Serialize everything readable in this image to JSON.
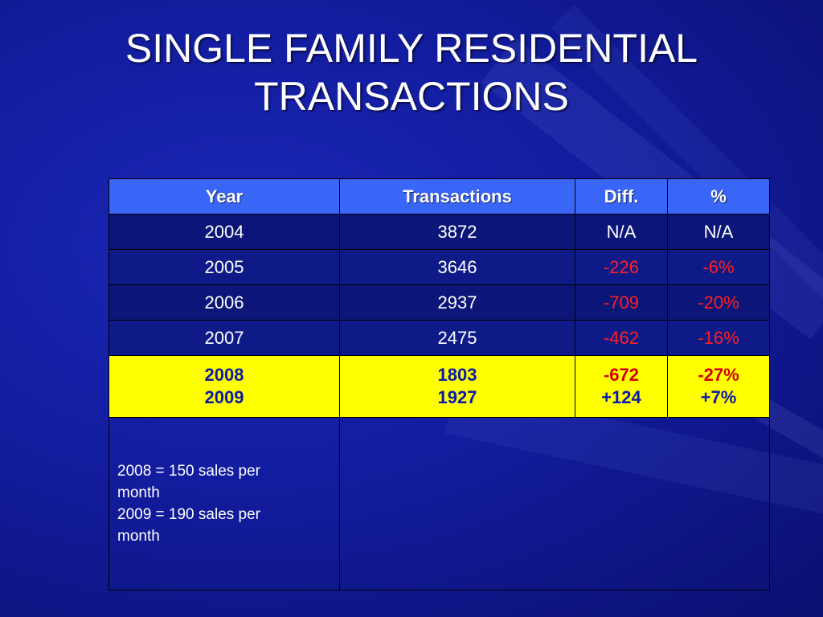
{
  "slide": {
    "title_line1": "SINGLE FAMILY RESIDENTIAL",
    "title_line2": "TRANSACTIONS"
  },
  "table": {
    "headers": [
      "Year",
      "Transactions",
      "Diff.",
      "%"
    ],
    "rows": [
      {
        "year": "2004",
        "transactions": "3872",
        "diff": "N/A",
        "pct": "N/A"
      },
      {
        "year": "2005",
        "transactions": "3646",
        "diff": "-226",
        "pct": "-6%"
      },
      {
        "year": "2006",
        "transactions": "2937",
        "diff": "-709",
        "pct": "-20%"
      },
      {
        "year": "2007",
        "transactions": "2475",
        "diff": "-462",
        "pct": "-16%"
      }
    ],
    "highlight": {
      "year": [
        "2008",
        "2009"
      ],
      "transactions": [
        "1803",
        "1927"
      ],
      "diff": [
        "-672",
        "+124"
      ],
      "pct": [
        "-27%",
        "+7%"
      ]
    },
    "note": {
      "line1": "2008 = 150 sales per",
      "line2": "month",
      "line3": "2009 = 190 sales per",
      "line4": "month"
    }
  },
  "colors": {
    "background": "#121c9e",
    "header": "#3a66f7",
    "highlight": "#ffff00",
    "negative": "#ff2020",
    "highlight_text": "#0a1aa8"
  }
}
